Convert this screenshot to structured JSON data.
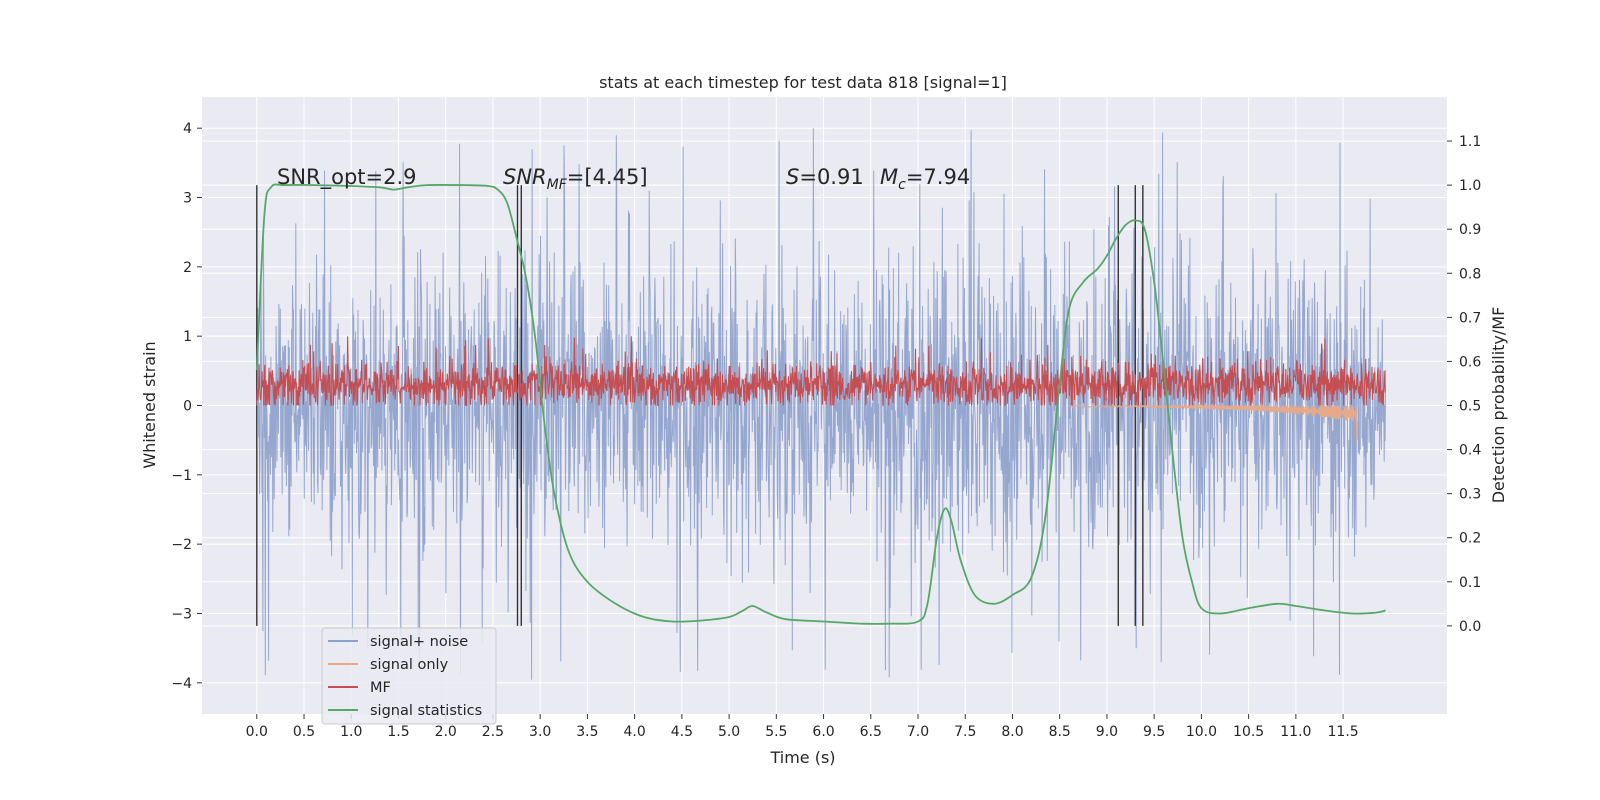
{
  "chart_data": {
    "type": "line",
    "title": "stats at each timestep for test data 818 [signal=1]",
    "xlabel": "Time (s)",
    "ylabel": "Whitened strain",
    "y2label": "Detection probability/MF",
    "xlim": [
      -0.58,
      12.6
    ],
    "ylim": [
      -4.45,
      4.45
    ],
    "y2lim": [
      -0.2,
      1.2
    ],
    "x_ticks": [
      0.0,
      0.5,
      1.0,
      1.5,
      2.0,
      2.5,
      3.0,
      3.5,
      4.0,
      4.5,
      5.0,
      5.5,
      6.0,
      6.5,
      7.0,
      7.5,
      8.0,
      8.5,
      9.0,
      9.5,
      10.0,
      10.5,
      11.0,
      11.5
    ],
    "x_tick_labels": [
      "0.0",
      "0.5",
      "1.0",
      "1.5",
      "2.0",
      "2.5",
      "3.0",
      "3.5",
      "4.0",
      "4.5",
      "5.0",
      "5.5",
      "6.0",
      "6.5",
      "7.0",
      "7.5",
      "8.0",
      "8.5",
      "9.0",
      "9.5",
      "10.0",
      "10.5",
      "11.0",
      "11.5"
    ],
    "y_ticks": [
      4,
      3,
      2,
      1,
      0,
      -1,
      -2,
      -3,
      -4
    ],
    "y_tick_labels": [
      "4",
      "3",
      "2",
      "1",
      "0",
      "−1",
      "−2",
      "−3",
      "−4"
    ],
    "y2_ticks": [
      1.1,
      1.0,
      0.9,
      0.8,
      0.7,
      0.6,
      0.5,
      0.4,
      0.3,
      0.2,
      0.1,
      0.0
    ],
    "y2_tick_labels": [
      "1.1",
      "1.0",
      "0.9",
      "0.8",
      "0.7",
      "0.6",
      "0.5",
      "0.4",
      "0.3",
      "0.2",
      "0.1",
      "0.0"
    ],
    "grid": true,
    "legend_placement": "lower-left",
    "annotations": {
      "snr_opt": "SNR_opt=2.9",
      "snr_mf": "SNR",
      "snr_mf_sub": "MF",
      "snr_mf_value": "=[4.45]",
      "s_var": "S",
      "s_value": "=0.91",
      "mc_var": "M",
      "mc_sub": "c",
      "mc_value": "=7.94"
    },
    "vlines": [
      0.0,
      2.76,
      2.8,
      9.12,
      9.3,
      9.38
    ],
    "series": [
      {
        "name": "signal+ noise",
        "color": "#8da0cb",
        "axis": "left",
        "approx_range": [
          -4.0,
          4.1
        ],
        "t_range": [
          0.0,
          11.95
        ]
      },
      {
        "name": "signal only",
        "color": "#e5a98c",
        "axis": "left",
        "approx_range": [
          -0.5,
          0.0
        ],
        "t_range": [
          8.6,
          11.65
        ]
      },
      {
        "name": "MF",
        "color": "#c44e52",
        "axis": "left",
        "approx_range": [
          0.0,
          1.0
        ],
        "t_range": [
          0.0,
          11.95
        ]
      },
      {
        "name": "signal statistics",
        "color": "#55a868",
        "axis": "right",
        "x": [
          0.0,
          0.08,
          0.15,
          0.3,
          0.6,
          1.0,
          1.3,
          1.45,
          1.6,
          1.8,
          2.2,
          2.45,
          2.55,
          2.65,
          2.75,
          2.85,
          2.95,
          3.05,
          3.15,
          3.3,
          3.5,
          3.8,
          4.1,
          4.4,
          4.7,
          5.0,
          5.15,
          5.25,
          5.4,
          5.6,
          6.0,
          6.4,
          6.7,
          7.0,
          7.1,
          7.2,
          7.28,
          7.35,
          7.45,
          7.6,
          7.8,
          8.0,
          8.2,
          8.35,
          8.5,
          8.6,
          8.75,
          8.9,
          9.0,
          9.1,
          9.2,
          9.3,
          9.4,
          9.5,
          9.6,
          9.7,
          9.8,
          9.9,
          10.0,
          10.2,
          10.5,
          10.8,
          11.0,
          11.3,
          11.6,
          11.85,
          11.95
        ],
        "y": [
          0.58,
          0.93,
          0.995,
          1.0,
          1.0,
          0.998,
          0.995,
          0.99,
          0.995,
          1.0,
          1.0,
          0.998,
          0.99,
          0.96,
          0.88,
          0.79,
          0.65,
          0.45,
          0.3,
          0.17,
          0.1,
          0.05,
          0.02,
          0.01,
          0.012,
          0.02,
          0.035,
          0.045,
          0.03,
          0.015,
          0.01,
          0.005,
          0.005,
          0.01,
          0.05,
          0.2,
          0.265,
          0.24,
          0.15,
          0.07,
          0.05,
          0.07,
          0.11,
          0.25,
          0.55,
          0.72,
          0.78,
          0.81,
          0.84,
          0.88,
          0.91,
          0.92,
          0.9,
          0.78,
          0.59,
          0.38,
          0.2,
          0.1,
          0.04,
          0.028,
          0.04,
          0.05,
          0.045,
          0.035,
          0.028,
          0.03,
          0.035
        ]
      }
    ]
  }
}
